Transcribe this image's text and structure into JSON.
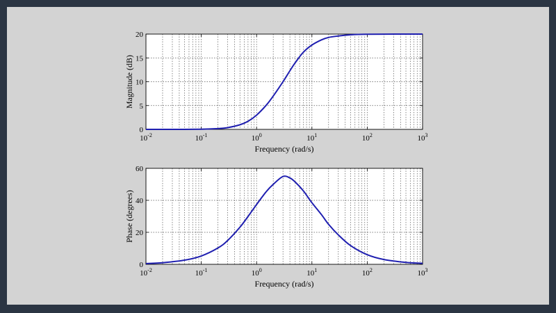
{
  "colors": {
    "frame": "#2b3543",
    "background": "#d3d3d3",
    "plot_area": "#ffffff",
    "line": "#1f1fb0"
  },
  "chart_data": [
    {
      "type": "line",
      "title": "",
      "xlabel": "Frequency (rad/s)",
      "ylabel": "Magnitude (dB)",
      "xscale": "log",
      "xlim": [
        0.01,
        1000
      ],
      "ylim": [
        0,
        20
      ],
      "x_ticks": [
        0.01,
        0.1,
        1,
        10,
        100,
        1000
      ],
      "x_tick_labels": [
        {
          "base": "10",
          "exp": "-2"
        },
        {
          "base": "10",
          "exp": "-1"
        },
        {
          "base": "10",
          "exp": "0"
        },
        {
          "base": "10",
          "exp": "1"
        },
        {
          "base": "10",
          "exp": "2"
        },
        {
          "base": "10",
          "exp": "3"
        }
      ],
      "y_ticks": [
        0,
        5,
        10,
        15,
        20
      ],
      "y_tick_labels": [
        "0",
        "5",
        "10",
        "15",
        "20"
      ],
      "grid": true,
      "series": [
        {
          "x": [
            0.01,
            0.03,
            0.1,
            0.2,
            0.3,
            0.5,
            0.7,
            1,
            1.5,
            2,
            3,
            4,
            5,
            7,
            10,
            15,
            20,
            30,
            50,
            70,
            100,
            200,
            500,
            1000
          ],
          "y": [
            0,
            0,
            0.04,
            0.17,
            0.37,
            0.97,
            1.7,
            3.0,
            5.1,
            7.0,
            10.0,
            12.3,
            14.0,
            16.2,
            17.7,
            18.8,
            19.3,
            19.6,
            19.85,
            19.93,
            19.96,
            19.99,
            20,
            20
          ]
        }
      ]
    },
    {
      "type": "line",
      "title": "",
      "xlabel": "Frequency (rad/s)",
      "ylabel": "Phase (degrees)",
      "xscale": "log",
      "xlim": [
        0.01,
        1000
      ],
      "ylim": [
        0,
        60
      ],
      "x_ticks": [
        0.01,
        0.1,
        1,
        10,
        100,
        1000
      ],
      "x_tick_labels": [
        {
          "base": "10",
          "exp": "-2"
        },
        {
          "base": "10",
          "exp": "-1"
        },
        {
          "base": "10",
          "exp": "0"
        },
        {
          "base": "10",
          "exp": "1"
        },
        {
          "base": "10",
          "exp": "2"
        },
        {
          "base": "10",
          "exp": "3"
        }
      ],
      "y_ticks": [
        0,
        20,
        40,
        60
      ],
      "y_tick_labels": [
        "0",
        "20",
        "40",
        "60"
      ],
      "grid": true,
      "series": [
        {
          "x": [
            0.01,
            0.02,
            0.05,
            0.1,
            0.2,
            0.3,
            0.5,
            0.7,
            1,
            1.5,
            2,
            3,
            4,
            5,
            7,
            10,
            15,
            20,
            30,
            50,
            100,
            200,
            500,
            1000
          ],
          "y": [
            0.5,
            1.0,
            2.6,
            5.2,
            10.2,
            14.9,
            23.2,
            29.9,
            37.4,
            45.5,
            50.0,
            54.9,
            54.0,
            51.4,
            45.9,
            38.5,
            30.9,
            25.0,
            18.4,
            11.7,
            6.0,
            3.0,
            1.2,
            0.6
          ]
        }
      ]
    }
  ]
}
